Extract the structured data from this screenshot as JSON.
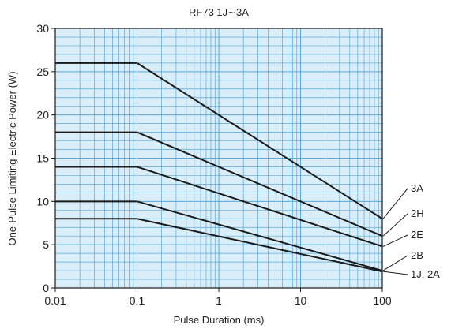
{
  "chart_data": {
    "type": "line",
    "title": "RF73 1J∼3A",
    "xlabel": "Pulse Duration (ms)",
    "ylabel": "One-Pulse Limiting Electric Power (W)",
    "x_scale": "log",
    "xlim": [
      0.01,
      100
    ],
    "ylim": [
      0,
      30
    ],
    "x_ticks": [
      0.01,
      0.1,
      1,
      10,
      100
    ],
    "x_tick_labels": [
      "0.01",
      "0.1",
      "1",
      "10",
      "100"
    ],
    "y_ticks": [
      0,
      5,
      10,
      15,
      20,
      25,
      30
    ],
    "y_tick_labels": [
      "0",
      "5",
      "10",
      "15",
      "20",
      "25",
      "30"
    ],
    "grid": true,
    "colors": {
      "plot_background": "#d9eef8",
      "grid": "#5aa8d6",
      "line": "#1a1a1a"
    },
    "series": [
      {
        "name": "3A",
        "points": [
          [
            0.01,
            26
          ],
          [
            0.1,
            26
          ],
          [
            100,
            8
          ]
        ]
      },
      {
        "name": "2H",
        "points": [
          [
            0.01,
            18
          ],
          [
            0.1,
            18
          ],
          [
            100,
            6
          ]
        ]
      },
      {
        "name": "2E",
        "points": [
          [
            0.01,
            14
          ],
          [
            0.1,
            14
          ],
          [
            100,
            4.8
          ]
        ]
      },
      {
        "name": "2B",
        "points": [
          [
            0.01,
            10
          ],
          [
            0.1,
            10
          ],
          [
            100,
            2
          ]
        ]
      },
      {
        "name": "1J, 2A",
        "points": [
          [
            0.01,
            8
          ],
          [
            0.1,
            8
          ],
          [
            100,
            1.9
          ]
        ]
      }
    ]
  }
}
